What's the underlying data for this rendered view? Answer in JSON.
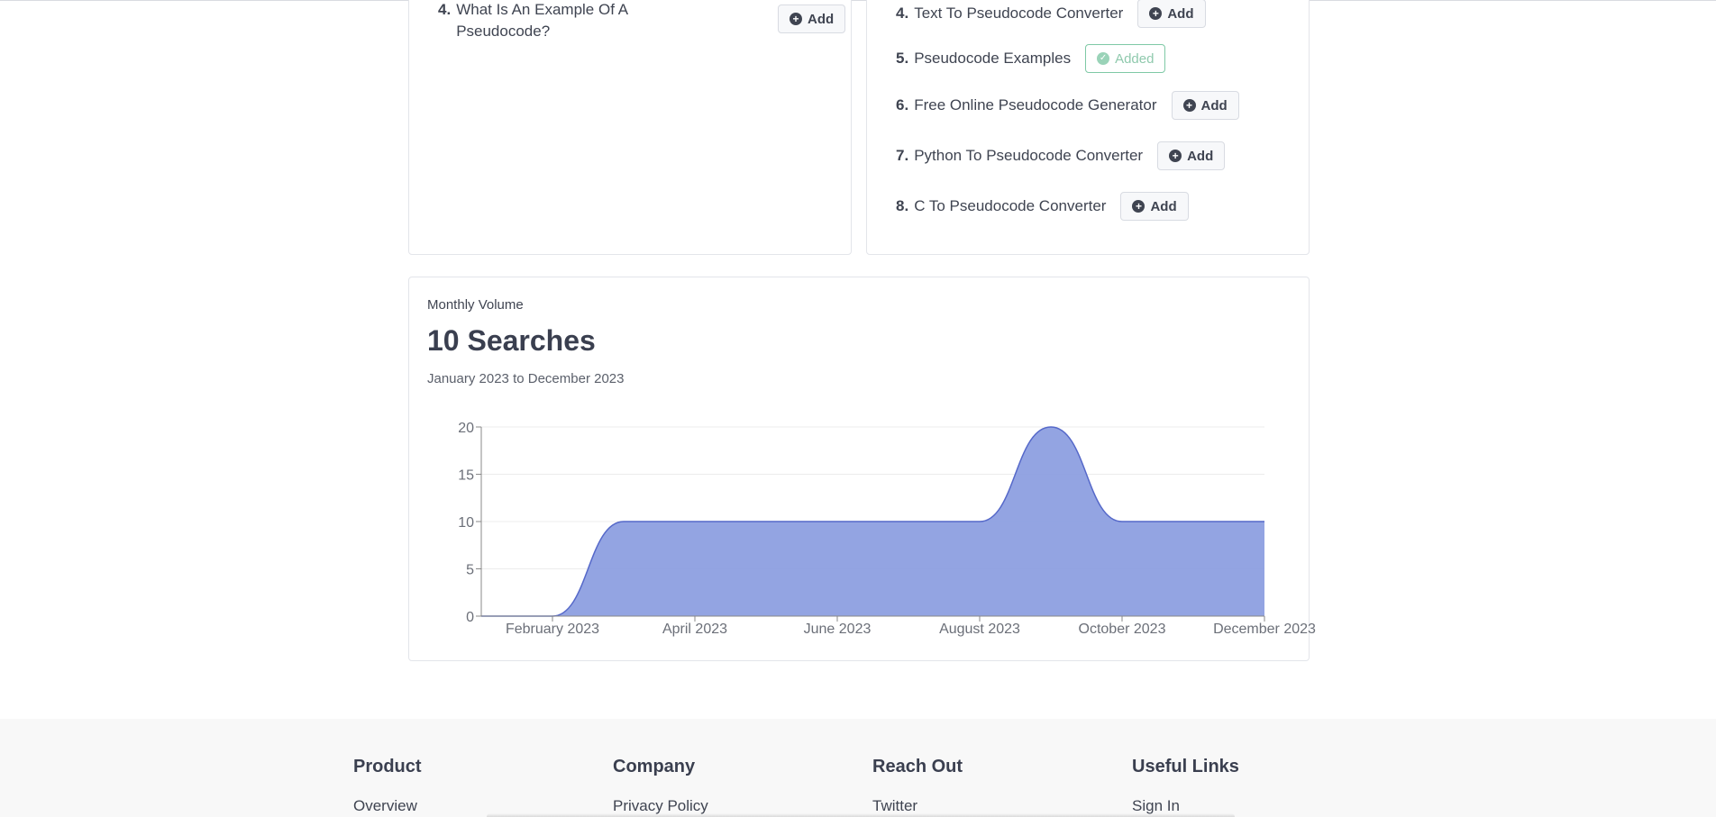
{
  "left_card": {
    "questions": [
      {
        "num": "4.",
        "line1": "What Is An Example Of A",
        "line2": "Pseudocode?",
        "action": "Add"
      }
    ]
  },
  "right_card": {
    "items": [
      {
        "num": "4.",
        "text": "Text To Pseudocode Converter",
        "action": "Add",
        "added": false
      },
      {
        "num": "5.",
        "text": "Pseudocode Examples",
        "action": "Added",
        "added": true
      },
      {
        "num": "6.",
        "text": "Free Online Pseudocode Generator",
        "action": "Add",
        "added": false
      },
      {
        "num": "7.",
        "text": "Python To Pseudocode Converter",
        "action": "Add",
        "added": false
      },
      {
        "num": "8.",
        "text": "C To Pseudocode Converter",
        "action": "Add",
        "added": false
      }
    ]
  },
  "volume": {
    "label": "Monthly Volume",
    "title": "10 Searches",
    "range": "January 2023 to December 2023"
  },
  "chart_data": {
    "type": "area",
    "x": [
      "January 2023",
      "February 2023",
      "March 2023",
      "April 2023",
      "May 2023",
      "June 2023",
      "July 2023",
      "August 2023",
      "September 2023",
      "October 2023",
      "November 2023",
      "December 2023"
    ],
    "values": [
      0,
      0,
      10,
      10,
      10,
      10,
      10,
      10,
      20,
      10,
      10,
      10
    ],
    "x_tick_labels": [
      "February 2023",
      "April 2023",
      "June 2023",
      "August 2023",
      "October 2023",
      "December 2023"
    ],
    "y_ticks": [
      "0",
      "5",
      "10",
      "15",
      "20"
    ],
    "ylim": [
      0,
      20
    ],
    "grid": true,
    "fill_color": "#8d9fe0",
    "line_color": "#5568c9"
  },
  "footer": {
    "columns": [
      {
        "heading": "Product",
        "link": "Overview"
      },
      {
        "heading": "Company",
        "link": "Privacy Policy"
      },
      {
        "heading": "Reach Out",
        "link": "Twitter"
      },
      {
        "heading": "Useful Links",
        "link": "Sign In"
      }
    ]
  }
}
